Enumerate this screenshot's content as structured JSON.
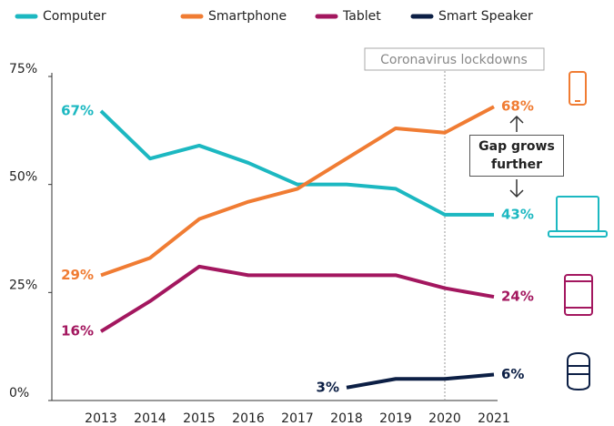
{
  "chart_data": {
    "type": "line",
    "categories": [
      "2013",
      "2014",
      "2015",
      "2016",
      "2017",
      "2018",
      "2019",
      "2020",
      "2021"
    ],
    "series": [
      {
        "name": "Computer",
        "color": "#1cb8c1",
        "values": [
          67,
          56,
          59,
          55,
          50,
          50,
          49,
          43,
          43
        ],
        "value_labels": [
          "67%",
          null,
          null,
          null,
          null,
          null,
          null,
          null,
          "43%"
        ]
      },
      {
        "name": "Smartphone",
        "color": "#f07c33",
        "values": [
          29,
          33,
          42,
          46,
          49,
          56,
          63,
          62,
          68
        ],
        "value_labels": [
          "29%",
          null,
          null,
          null,
          null,
          null,
          null,
          null,
          "68%"
        ]
      },
      {
        "name": "Tablet",
        "color": "#a3175f",
        "values": [
          16,
          23,
          31,
          29,
          29,
          29,
          29,
          26,
          24
        ],
        "value_labels": [
          "16%",
          null,
          null,
          null,
          null,
          null,
          null,
          null,
          "24%"
        ]
      },
      {
        "name": "Smart Speaker",
        "color": "#0c1f45",
        "values": [
          null,
          null,
          null,
          null,
          null,
          3,
          5,
          5,
          6
        ],
        "value_labels": [
          null,
          null,
          null,
          null,
          null,
          "3%",
          null,
          null,
          "6%"
        ]
      }
    ],
    "ylim": [
      0,
      75
    ],
    "yticks": [
      {
        "value": 0,
        "label": "0%"
      },
      {
        "value": 25,
        "label": "25%"
      },
      {
        "value": 50,
        "label": "50%"
      },
      {
        "value": 75,
        "label": "75%"
      }
    ],
    "annotations": [
      {
        "text": "Coronavirus lockdowns",
        "x": "2020"
      },
      {
        "text": "Gap grows further"
      }
    ],
    "legend": "top"
  }
}
